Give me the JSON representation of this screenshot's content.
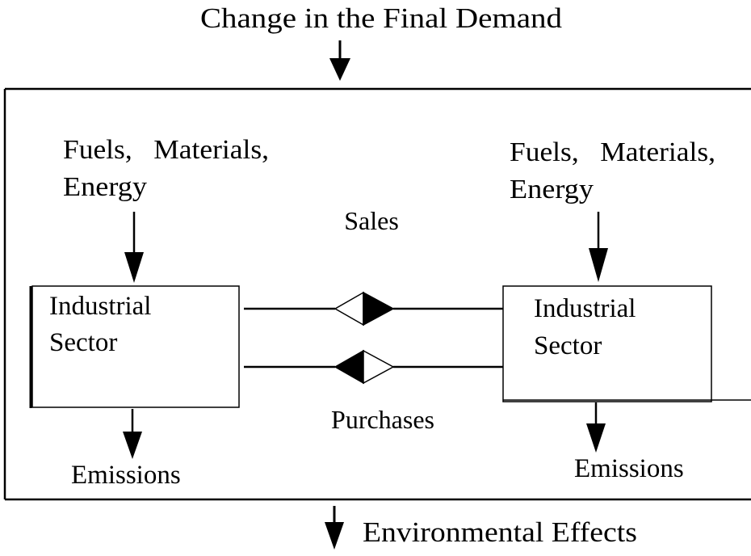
{
  "diagram": {
    "top_label": "Change in the Final Demand",
    "bottom_label": "Environmental Effects",
    "left_inputs": {
      "line1": "Fuels,   Materials,",
      "line2": "Energy"
    },
    "right_inputs": {
      "line1": "Fuels,   Materials,",
      "line2": "Energy"
    },
    "left_sector": {
      "line1": "Industrial",
      "line2": "Sector"
    },
    "right_sector": {
      "line1": "Industrial",
      "line2": "Sector"
    },
    "sales_label": "Sales",
    "purchases_label": "Purchases",
    "left_emissions": "Emissions",
    "right_emissions": "Emissions"
  }
}
